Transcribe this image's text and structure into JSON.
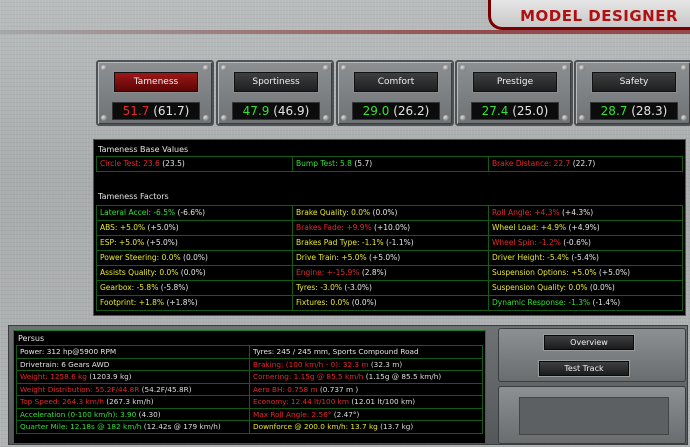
{
  "header": {
    "title": "MODEL DESIGNER"
  },
  "scores": [
    {
      "label": "Tameness",
      "value": "51.7",
      "prev": "(61.7)",
      "color": "red",
      "active": true
    },
    {
      "label": "Sportiness",
      "value": "47.9",
      "prev": "(46.9)",
      "color": "green",
      "active": false
    },
    {
      "label": "Comfort",
      "value": "29.0",
      "prev": "(26.2)",
      "color": "green",
      "active": false
    },
    {
      "label": "Prestige",
      "value": "27.4",
      "prev": "(25.0)",
      "color": "green",
      "active": false
    },
    {
      "label": "Safety",
      "value": "28.7",
      "prev": "(28.3)",
      "color": "green",
      "active": false
    }
  ],
  "tameness": {
    "base_title": "Tameness Base Values",
    "base": [
      {
        "label": "Circle Test: 23.6",
        "prev": "(23.5)",
        "color": "red"
      },
      {
        "label": "Bump Test: 5.8",
        "prev": "(5.7)",
        "color": "green"
      },
      {
        "label": "Brake Distance: 22.7",
        "prev": "(22.7)",
        "color": "red"
      }
    ],
    "factors_title": "Tameness Factors",
    "factors": [
      [
        {
          "label": "Lateral Accel: -6.5%",
          "prev": "(-6.6%)",
          "color": "green"
        },
        {
          "label": "Brake Quality: 0.0%",
          "prev": "(0.0%)",
          "color": "yellow"
        },
        {
          "label": "Roll Angle: +4.3%",
          "prev": "(+4.3%)",
          "color": "red"
        }
      ],
      [
        {
          "label": "ABS: +5.0%",
          "prev": "(+5.0%)",
          "color": "yellow"
        },
        {
          "label": "Brakes Fade: +9.9%",
          "prev": "(+10.0%)",
          "color": "red"
        },
        {
          "label": "Wheel Load: +4.9%",
          "prev": "(+4.9%)",
          "color": "yellow"
        }
      ],
      [
        {
          "label": "ESP: +5.0%",
          "prev": "(+5.0%)",
          "color": "yellow"
        },
        {
          "label": "Brakes Pad Type: -1.1%",
          "prev": "(-1.1%)",
          "color": "yellow"
        },
        {
          "label": "Wheel Spin: -1.2%",
          "prev": "(-0.6%)",
          "color": "red"
        }
      ],
      [
        {
          "label": "Power Steering: 0.0%",
          "prev": "(0.0%)",
          "color": "yellow"
        },
        {
          "label": "Drive Train: +5.0%",
          "prev": "(+5.0%)",
          "color": "yellow"
        },
        {
          "label": "Driver Height: -5.4%",
          "prev": "(-5.4%)",
          "color": "yellow"
        }
      ],
      [
        {
          "label": "Assists Quality: 0.0%",
          "prev": "(0.0%)",
          "color": "yellow"
        },
        {
          "label": "Engine: +-15.9%",
          "prev": "(2.8%)",
          "color": "red"
        },
        {
          "label": "Suspension Options: +5.0%",
          "prev": "(+5.0%)",
          "color": "yellow"
        }
      ],
      [
        {
          "label": "Gearbox: -5.8%",
          "prev": "(-5.8%)",
          "color": "yellow"
        },
        {
          "label": "Tyres: -3.0%",
          "prev": "(-3.0%)",
          "color": "yellow"
        },
        {
          "label": "Suspension Quality: 0.0%",
          "prev": "(0.0%)",
          "color": "yellow"
        }
      ],
      [
        {
          "label": "Footprint: +1.8%",
          "prev": "(+1.8%)",
          "color": "yellow"
        },
        {
          "label": "Fixtures: 0.0%",
          "prev": "(0.0%)",
          "color": "yellow"
        },
        {
          "label": "Dynamic Response: -1.3%",
          "prev": "(-1.4%)",
          "color": "green"
        }
      ]
    ]
  },
  "car": {
    "name": "Persus",
    "rows": [
      [
        {
          "label": "Power: 312 hp@5900 RPM",
          "prev": "",
          "color": "white"
        },
        {
          "label": "Tyres: 245 / 245 mm, Sports Compound Road",
          "prev": "",
          "color": "white"
        }
      ],
      [
        {
          "label": "Drivetrain: 6 Gears AWD",
          "prev": "",
          "color": "white"
        },
        {
          "label": "Braking: (100 km/h - 0): 32.3 m",
          "prev": "(32.3 m)",
          "color": "red"
        }
      ],
      [
        {
          "label": "Weight: 1258.6 kg",
          "prev": "(1203.9 kg)",
          "color": "red"
        },
        {
          "label": "Cornering: 1.15g @ 85.5 km/h",
          "prev": "(1.15g @ 85.5 km/h)",
          "color": "red"
        }
      ],
      [
        {
          "label": "Weight Distribution: 55.2F/44.8R",
          "prev": "(54.2F/45.8R)",
          "color": "red"
        },
        {
          "label": "Aero BH: 0.758 m",
          "prev": "(0.737 m )",
          "color": "red"
        }
      ],
      [
        {
          "label": "Top Speed: 264.3 km/h",
          "prev": "(267.3 km/h)",
          "color": "red"
        },
        {
          "label": "Economy: 12.44 lt/100 km",
          "prev": "(12.01 lt/100 km)",
          "color": "red"
        }
      ],
      [
        {
          "label": "Acceleration (0-100 km/h): 3.90",
          "prev": "(4.30)",
          "color": "green"
        },
        {
          "label": "Max Roll Angle: 2.56°",
          "prev": "(2.47°)",
          "color": "red"
        }
      ],
      [
        {
          "label": "Quarter Mile: 12.18s @ 182 km/h",
          "prev": "(12.42s @ 179 km/h)",
          "color": "green"
        },
        {
          "label": "Downforce @ 200.0 km/h: 13.7 kg",
          "prev": "(13.7 kg)",
          "color": "yellow"
        }
      ]
    ]
  },
  "buttons": {
    "overview": "Overview",
    "test_track": "Test Track"
  },
  "colors": {
    "red": "#e02a2a",
    "green": "#33e033",
    "yellow": "#e8e82e",
    "white": "#e4e4e4",
    "accent": "#b01010"
  }
}
